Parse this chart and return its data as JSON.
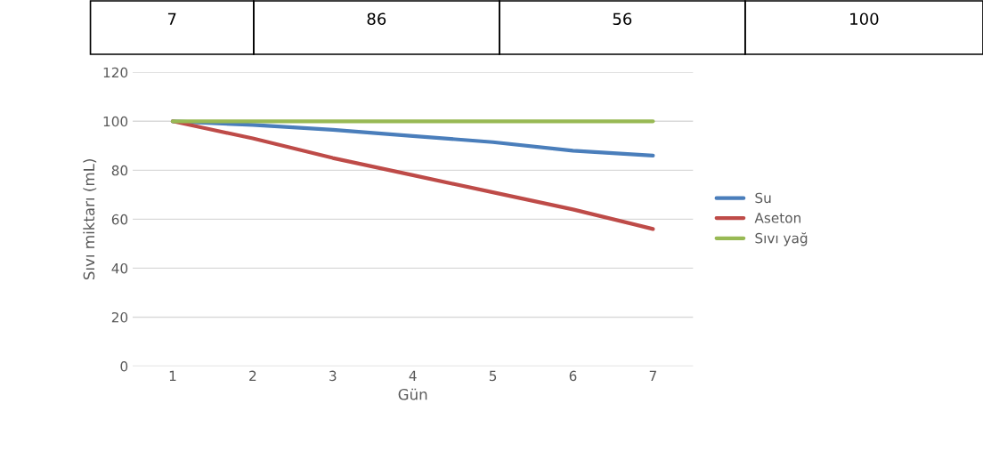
{
  "chart_data": {
    "type": "line",
    "xlabel": "Gün",
    "ylabel": "Sıvı miktarı (mL)",
    "categories": [
      "1",
      "2",
      "3",
      "4",
      "5",
      "6",
      "7"
    ],
    "series": [
      {
        "name": "Su",
        "color": "#4a7ebb",
        "values": [
          100,
          98.5,
          96.5,
          94,
          91.5,
          88,
          86
        ]
      },
      {
        "name": "Aseton",
        "color": "#be4b48",
        "values": [
          100,
          93,
          85,
          78,
          71,
          64,
          56
        ]
      },
      {
        "name": "Sıvı yağ",
        "color": "#98b954",
        "values": [
          100,
          100,
          100,
          100,
          100,
          100,
          100
        ]
      }
    ],
    "ylim": [
      0,
      120
    ],
    "yticks": [
      0,
      20,
      40,
      60,
      80,
      100,
      120
    ],
    "grid": "y",
    "legend": "right",
    "marker": "none",
    "line_style": "solid",
    "annotations": [
      "7",
      "86",
      "56",
      "100"
    ]
  }
}
